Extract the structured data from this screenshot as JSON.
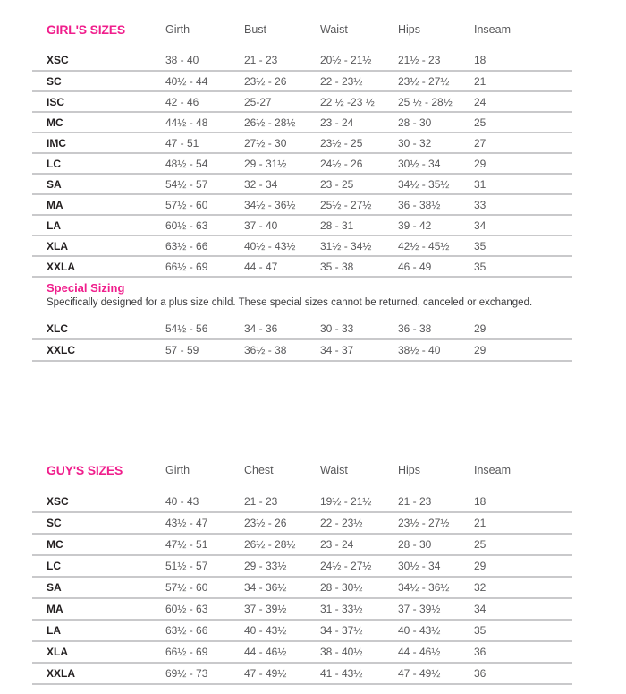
{
  "colors": {
    "accent_pink": "#F01E8C",
    "label_dark": "#231F20",
    "value_gray": "#58585A",
    "line_gray": "#C9C9CB"
  },
  "girls_table": {
    "title": "GIRL'S SIZES",
    "columns": [
      "Girth",
      "Bust",
      "Waist",
      "Hips",
      "Inseam"
    ],
    "rows": [
      {
        "size": "XSC",
        "values": [
          "38 - 40",
          "21 - 23",
          "20½ - 21½",
          "21½ - 23",
          "18"
        ]
      },
      {
        "size": "SC",
        "values": [
          "40½ - 44",
          "23½ - 26",
          "22 - 23½",
          "23½ - 27½",
          "21"
        ]
      },
      {
        "size": "ISC",
        "values": [
          "42 - 46",
          "25-27",
          "22 ½ -23 ½",
          "25 ½ - 28½",
          "24"
        ]
      },
      {
        "size": "MC",
        "values": [
          "44½ - 48",
          "26½ - 28½",
          "23 - 24",
          "28 - 30",
          "25"
        ]
      },
      {
        "size": "IMC",
        "values": [
          "47 - 51",
          "27½ - 30",
          "23½ - 25",
          "30 - 32",
          "27"
        ]
      },
      {
        "size": "LC",
        "values": [
          "48½ - 54",
          "29 - 31½",
          "24½ - 26",
          "30½ - 34",
          "29"
        ]
      },
      {
        "size": "SA",
        "values": [
          "54½ - 57",
          "32 - 34",
          "23 - 25",
          "34½ - 35½",
          "31"
        ]
      },
      {
        "size": "MA",
        "values": [
          "57½ - 60",
          "34½ - 36½",
          "25½ - 27½",
          "36 - 38½",
          "33"
        ]
      },
      {
        "size": "LA",
        "values": [
          "60½ - 63",
          "37 - 40",
          "28 - 31",
          "39 - 42",
          "34"
        ]
      },
      {
        "size": "XLA",
        "values": [
          "63½ - 66",
          "40½ - 43½",
          "31½ - 34½",
          "42½ - 45½",
          "35"
        ]
      },
      {
        "size": "XXLA",
        "values": [
          "66½ - 69",
          "44 - 47",
          "35 - 38",
          "46 - 49",
          "35"
        ]
      }
    ]
  },
  "special_sizing": {
    "title": "Special Sizing",
    "description": "Specifically designed for a plus size child. These special sizes cannot be returned, canceled or exchanged.",
    "rows": [
      {
        "size": "XLC",
        "values": [
          "54½ - 56",
          "34 - 36",
          "30 - 33",
          "36 - 38",
          "29"
        ]
      },
      {
        "size": "XXLC",
        "values": [
          "57 - 59",
          "36½ - 38",
          "34 - 37",
          "38½ - 40",
          "29"
        ]
      }
    ]
  },
  "guys_table": {
    "title": "GUY'S SIZES",
    "columns": [
      "Girth",
      "Chest",
      "Waist",
      "Hips",
      "Inseam"
    ],
    "rows": [
      {
        "size": "XSC",
        "values": [
          "40 - 43",
          "21 - 23",
          "19½ - 21½",
          "21 - 23",
          "18"
        ]
      },
      {
        "size": "SC",
        "values": [
          "43½ - 47",
          "23½ - 26",
          "22 - 23½",
          "23½ - 27½",
          "21"
        ]
      },
      {
        "size": "MC",
        "values": [
          "47½ - 51",
          "26½ - 28½",
          "23 - 24",
          "28 - 30",
          "25"
        ]
      },
      {
        "size": "LC",
        "values": [
          "51½ - 57",
          "29 - 33½",
          "24½ - 27½",
          "30½ - 34",
          "29"
        ]
      },
      {
        "size": "SA",
        "values": [
          "57½ - 60",
          "34 - 36½",
          "28 - 30½",
          "34½ - 36½",
          "32"
        ]
      },
      {
        "size": "MA",
        "values": [
          "60½ - 63",
          "37 - 39½",
          "31 - 33½",
          "37 - 39½",
          "34"
        ]
      },
      {
        "size": "LA",
        "values": [
          "63½ - 66",
          "40 - 43½",
          "34 - 37½",
          "40 - 43½",
          "35"
        ]
      },
      {
        "size": "XLA",
        "values": [
          "66½ - 69",
          "44 - 46½",
          "38 - 40½",
          "44 - 46½",
          "36"
        ]
      },
      {
        "size": "XXLA",
        "values": [
          "69½ - 73",
          "47 - 49½",
          "41 - 43½",
          "47 - 49½",
          "36"
        ]
      }
    ]
  }
}
